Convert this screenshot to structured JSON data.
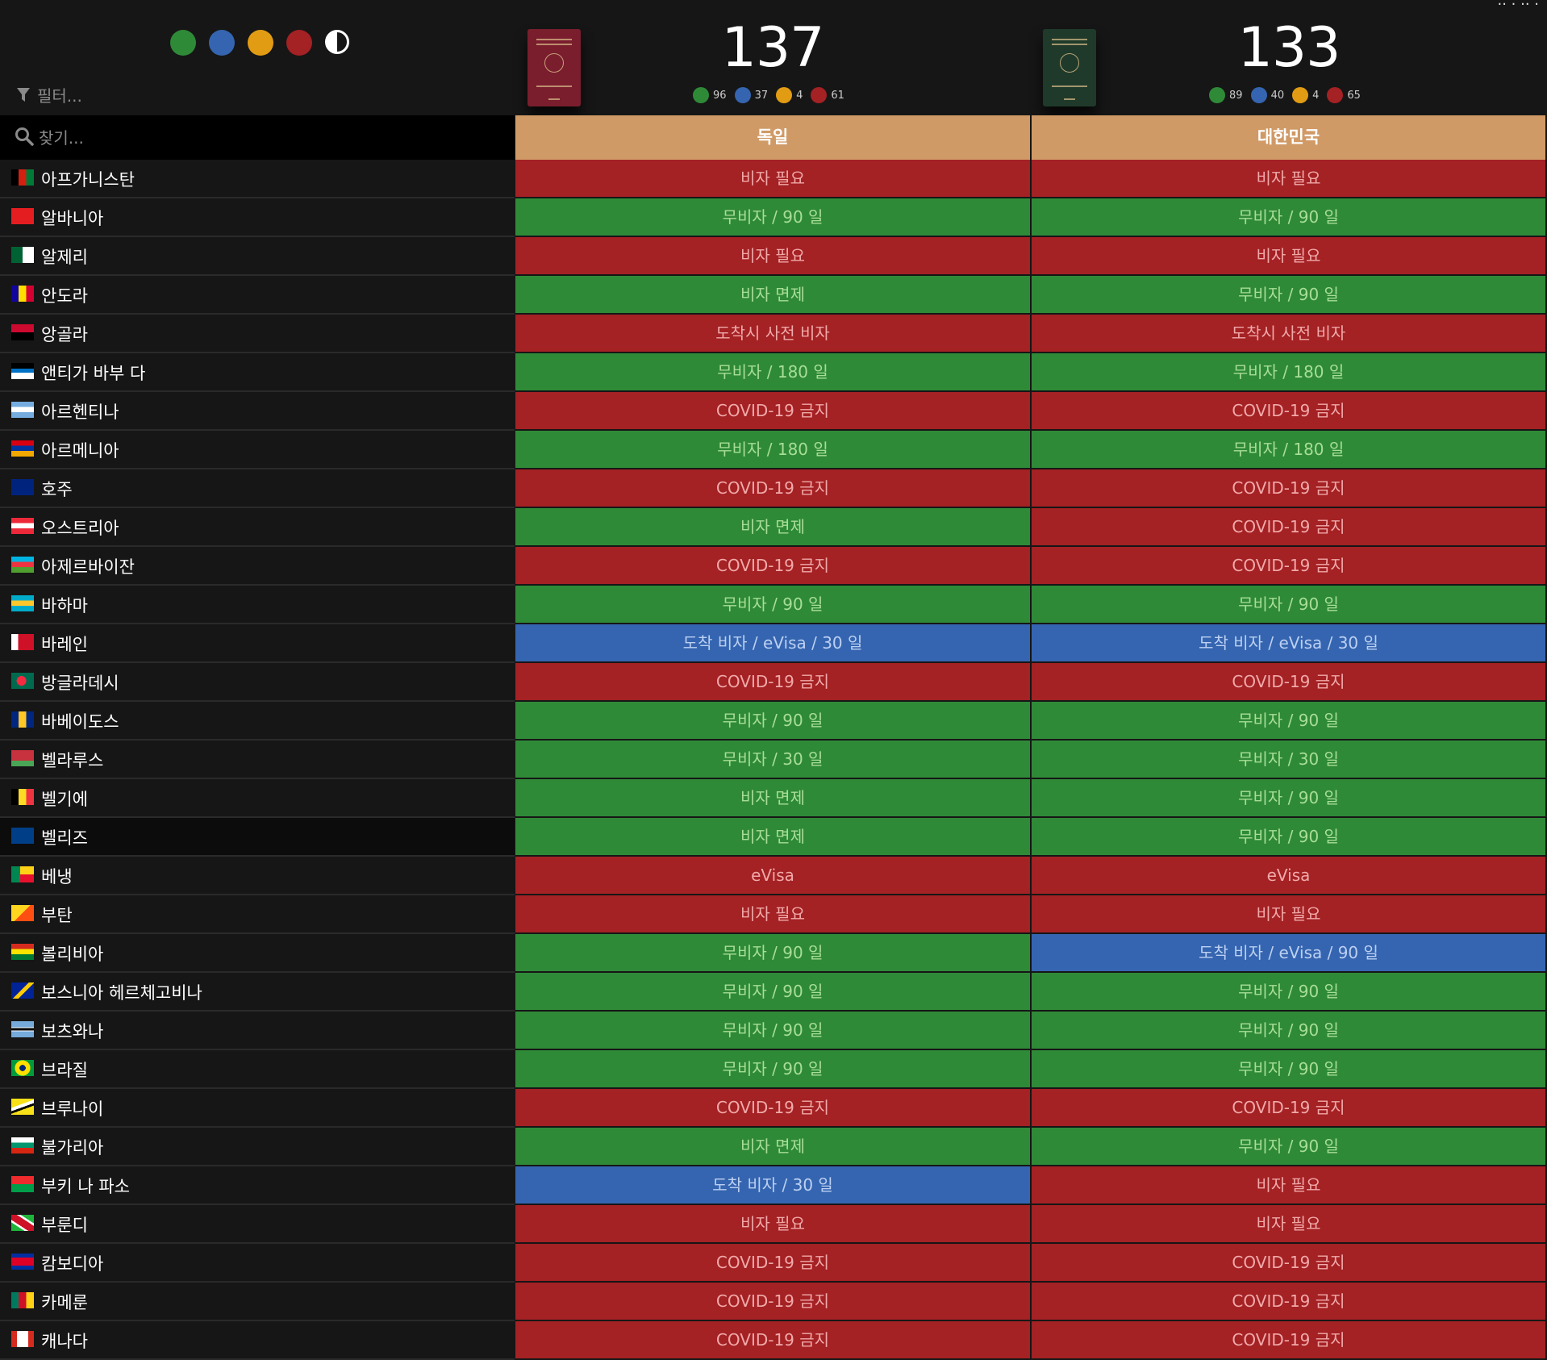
{
  "colors": {
    "green": "#2f8a38",
    "blue": "#3565b0",
    "yellow": "#e29c14",
    "red": "#a42124",
    "header_accent": "#d09a66",
    "background": "#161616"
  },
  "header": {
    "corner_text": ".. . .. .",
    "legend": [
      {
        "color": "#2f8a38",
        "icon": "green-dot"
      },
      {
        "color": "#3565b0",
        "icon": "blue-dot"
      },
      {
        "color": "#e29c14",
        "icon": "yellow-dot"
      },
      {
        "color": "#a42124",
        "icon": "red-dot"
      },
      {
        "icon": "contrast-icon"
      }
    ],
    "filter_label": "필터...",
    "search_placeholder": "찾기..."
  },
  "passports": [
    {
      "country": "독일",
      "total": "137",
      "cover_color": "#7a1e2e",
      "stats": [
        {
          "color": "#2f8a38",
          "value": "96"
        },
        {
          "color": "#3565b0",
          "value": "37"
        },
        {
          "color": "#e29c14",
          "value": "4"
        },
        {
          "color": "#a42124",
          "value": "61"
        }
      ]
    },
    {
      "country": "대한민국",
      "total": "133",
      "cover_color": "#1f3a2a",
      "stats": [
        {
          "color": "#2f8a38",
          "value": "89"
        },
        {
          "color": "#3565b0",
          "value": "40"
        },
        {
          "color": "#e29c14",
          "value": "4"
        },
        {
          "color": "#a42124",
          "value": "65"
        }
      ]
    }
  ],
  "rows": [
    {
      "name": "아프가니스탄",
      "flag": "afghanistan",
      "c1": {
        "text": "비자 필요",
        "s": "red"
      },
      "c2": {
        "text": "비자 필요",
        "s": "red"
      }
    },
    {
      "name": "알바니아",
      "flag": "albania",
      "c1": {
        "text": "무비자 / 90 일",
        "s": "green"
      },
      "c2": {
        "text": "무비자 / 90 일",
        "s": "green"
      }
    },
    {
      "name": "알제리",
      "flag": "algeria",
      "c1": {
        "text": "비자 필요",
        "s": "red"
      },
      "c2": {
        "text": "비자 필요",
        "s": "red"
      }
    },
    {
      "name": "안도라",
      "flag": "andorra",
      "c1": {
        "text": "비자 면제",
        "s": "green"
      },
      "c2": {
        "text": "무비자 / 90 일",
        "s": "green"
      }
    },
    {
      "name": "앙골라",
      "flag": "angola",
      "c1": {
        "text": "도착시 사전 비자",
        "s": "red"
      },
      "c2": {
        "text": "도착시 사전 비자",
        "s": "red"
      }
    },
    {
      "name": "앤티가 바부 다",
      "flag": "antigua",
      "c1": {
        "text": "무비자 / 180 일",
        "s": "green"
      },
      "c2": {
        "text": "무비자 / 180 일",
        "s": "green"
      }
    },
    {
      "name": "아르헨티나",
      "flag": "argentina",
      "c1": {
        "text": "COVID-19 금지",
        "s": "red"
      },
      "c2": {
        "text": "COVID-19 금지",
        "s": "red"
      }
    },
    {
      "name": "아르메니아",
      "flag": "armenia",
      "c1": {
        "text": "무비자 / 180 일",
        "s": "green"
      },
      "c2": {
        "text": "무비자 / 180 일",
        "s": "green"
      }
    },
    {
      "name": "호주",
      "flag": "australia",
      "c1": {
        "text": "COVID-19 금지",
        "s": "red"
      },
      "c2": {
        "text": "COVID-19 금지",
        "s": "red"
      }
    },
    {
      "name": "오스트리아",
      "flag": "austria",
      "c1": {
        "text": "비자 면제",
        "s": "green"
      },
      "c2": {
        "text": "COVID-19 금지",
        "s": "red"
      }
    },
    {
      "name": "아제르바이잔",
      "flag": "azerbaijan",
      "c1": {
        "text": "COVID-19 금지",
        "s": "red"
      },
      "c2": {
        "text": "COVID-19 금지",
        "s": "red"
      }
    },
    {
      "name": "바하마",
      "flag": "bahamas",
      "c1": {
        "text": "무비자 / 90 일",
        "s": "green"
      },
      "c2": {
        "text": "무비자 / 90 일",
        "s": "green"
      }
    },
    {
      "name": "바레인",
      "flag": "bahrain",
      "c1": {
        "text": "도착 비자 / eVisa / 30 일",
        "s": "blue"
      },
      "c2": {
        "text": "도착 비자 / eVisa / 30 일",
        "s": "blue"
      }
    },
    {
      "name": "방글라데시",
      "flag": "bangladesh",
      "c1": {
        "text": "COVID-19 금지",
        "s": "red"
      },
      "c2": {
        "text": "COVID-19 금지",
        "s": "red"
      }
    },
    {
      "name": "바베이도스",
      "flag": "barbados",
      "c1": {
        "text": "무비자 / 90 일",
        "s": "green"
      },
      "c2": {
        "text": "무비자 / 90 일",
        "s": "green"
      }
    },
    {
      "name": "벨라루스",
      "flag": "belarus",
      "c1": {
        "text": "무비자 / 30 일",
        "s": "green"
      },
      "c2": {
        "text": "무비자 / 30 일",
        "s": "green"
      }
    },
    {
      "name": "벨기에",
      "flag": "belgium",
      "c1": {
        "text": "비자 면제",
        "s": "green"
      },
      "c2": {
        "text": "무비자 / 90 일",
        "s": "green"
      }
    },
    {
      "name": "벨리즈",
      "flag": "belize",
      "hl": true,
      "c1": {
        "text": "비자 면제",
        "s": "green"
      },
      "c2": {
        "text": "무비자 / 90 일",
        "s": "green"
      }
    },
    {
      "name": "베냉",
      "flag": "benin",
      "c1": {
        "text": "eVisa",
        "s": "red"
      },
      "c2": {
        "text": "eVisa",
        "s": "red"
      }
    },
    {
      "name": "부탄",
      "flag": "bhutan",
      "c1": {
        "text": "비자 필요",
        "s": "red"
      },
      "c2": {
        "text": "비자 필요",
        "s": "red"
      }
    },
    {
      "name": "볼리비아",
      "flag": "bolivia",
      "c1": {
        "text": "무비자 / 90 일",
        "s": "green"
      },
      "c2": {
        "text": "도착 비자 / eVisa / 90 일",
        "s": "blue"
      }
    },
    {
      "name": "보스니아 헤르체고비나",
      "flag": "bosnia",
      "c1": {
        "text": "무비자 / 90 일",
        "s": "green"
      },
      "c2": {
        "text": "무비자 / 90 일",
        "s": "green"
      }
    },
    {
      "name": "보츠와나",
      "flag": "botswana",
      "c1": {
        "text": "무비자 / 90 일",
        "s": "green"
      },
      "c2": {
        "text": "무비자 / 90 일",
        "s": "green"
      }
    },
    {
      "name": "브라질",
      "flag": "brazil",
      "c1": {
        "text": "무비자 / 90 일",
        "s": "green"
      },
      "c2": {
        "text": "무비자 / 90 일",
        "s": "green"
      }
    },
    {
      "name": "브루나이",
      "flag": "brunei",
      "c1": {
        "text": "COVID-19 금지",
        "s": "red"
      },
      "c2": {
        "text": "COVID-19 금지",
        "s": "red"
      }
    },
    {
      "name": "불가리아",
      "flag": "bulgaria",
      "c1": {
        "text": "비자 면제",
        "s": "green"
      },
      "c2": {
        "text": "무비자 / 90 일",
        "s": "green"
      }
    },
    {
      "name": "부키 나 파소",
      "flag": "burkina",
      "c1": {
        "text": "도착 비자 / 30 일",
        "s": "blue"
      },
      "c2": {
        "text": "비자 필요",
        "s": "red"
      }
    },
    {
      "name": "부룬디",
      "flag": "burundi",
      "c1": {
        "text": "비자 필요",
        "s": "red"
      },
      "c2": {
        "text": "비자 필요",
        "s": "red"
      }
    },
    {
      "name": "캄보디아",
      "flag": "cambodia",
      "c1": {
        "text": "COVID-19 금지",
        "s": "red"
      },
      "c2": {
        "text": "COVID-19 금지",
        "s": "red"
      }
    },
    {
      "name": "카메룬",
      "flag": "cameroon",
      "c1": {
        "text": "COVID-19 금지",
        "s": "red"
      },
      "c2": {
        "text": "COVID-19 금지",
        "s": "red"
      }
    },
    {
      "name": "캐나다",
      "flag": "canada",
      "c1": {
        "text": "COVID-19 금지",
        "s": "red"
      },
      "c2": {
        "text": "COVID-19 금지",
        "s": "red"
      }
    }
  ]
}
